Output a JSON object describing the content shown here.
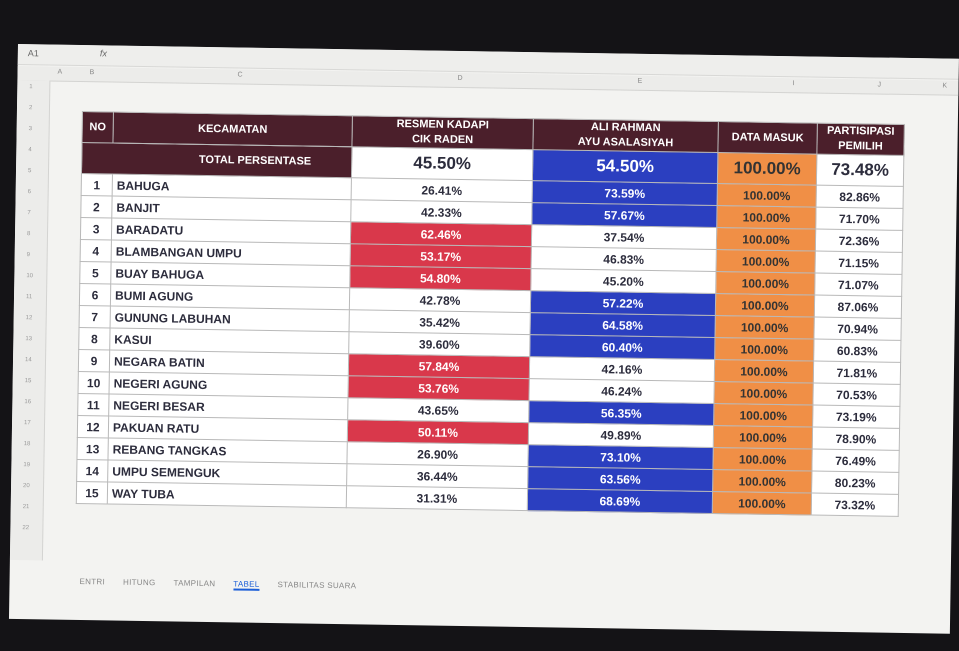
{
  "toolbar": {
    "cell_ref": "A1",
    "fx": "fx"
  },
  "columns": [
    "A",
    "B",
    "C",
    "D",
    "E",
    "",
    "I",
    "J",
    "K"
  ],
  "rows": [
    "1",
    "2",
    "3",
    "4",
    "5",
    "6",
    "7",
    "8",
    "9",
    "10",
    "11",
    "12",
    "13",
    "14",
    "15",
    "16",
    "17",
    "18",
    "19",
    "20",
    "21",
    "22"
  ],
  "header": {
    "no": "NO",
    "kecamatan": "KECAMATAN",
    "total_label": "TOTAL PERSENTASE",
    "cand1_line1": "RESMEN KADAPI",
    "cand1_line2": "CIK RADEN",
    "cand2_line1": "ALI RAHMAN",
    "cand2_line2": "AYU ASALASIYAH",
    "data_masuk": "DATA MASUK",
    "partisipasi_line1": "PARTISIPASI",
    "partisipasi_line2": "PEMILIH"
  },
  "totals": {
    "cand1": "45.50%",
    "cand2": "54.50%",
    "data_masuk": "100.00%",
    "partisipasi": "73.48%"
  },
  "table_rows": [
    {
      "no": "1",
      "name": "BAHUGA",
      "c1": "26.41%",
      "c2": "73.59%",
      "dm": "100.00%",
      "pp": "82.86%"
    },
    {
      "no": "2",
      "name": "BANJIT",
      "c1": "42.33%",
      "c2": "57.67%",
      "dm": "100.00%",
      "pp": "71.70%"
    },
    {
      "no": "3",
      "name": "BARADATU",
      "c1": "62.46%",
      "c2": "37.54%",
      "dm": "100.00%",
      "pp": "72.36%"
    },
    {
      "no": "4",
      "name": "BLAMBANGAN UMPU",
      "c1": "53.17%",
      "c2": "46.83%",
      "dm": "100.00%",
      "pp": "71.15%"
    },
    {
      "no": "5",
      "name": "BUAY BAHUGA",
      "c1": "54.80%",
      "c2": "45.20%",
      "dm": "100.00%",
      "pp": "71.07%"
    },
    {
      "no": "6",
      "name": "BUMI AGUNG",
      "c1": "42.78%",
      "c2": "57.22%",
      "dm": "100.00%",
      "pp": "87.06%"
    },
    {
      "no": "7",
      "name": "GUNUNG LABUHAN",
      "c1": "35.42%",
      "c2": "64.58%",
      "dm": "100.00%",
      "pp": "70.94%"
    },
    {
      "no": "8",
      "name": "KASUI",
      "c1": "39.60%",
      "c2": "60.40%",
      "dm": "100.00%",
      "pp": "60.83%"
    },
    {
      "no": "9",
      "name": "NEGARA BATIN",
      "c1": "57.84%",
      "c2": "42.16%",
      "dm": "100.00%",
      "pp": "71.81%"
    },
    {
      "no": "10",
      "name": "NEGERI AGUNG",
      "c1": "53.76%",
      "c2": "46.24%",
      "dm": "100.00%",
      "pp": "70.53%"
    },
    {
      "no": "11",
      "name": "NEGERI BESAR",
      "c1": "43.65%",
      "c2": "56.35%",
      "dm": "100.00%",
      "pp": "73.19%"
    },
    {
      "no": "12",
      "name": "PAKUAN RATU",
      "c1": "50.11%",
      "c2": "49.89%",
      "dm": "100.00%",
      "pp": "78.90%"
    },
    {
      "no": "13",
      "name": "REBANG TANGKAS",
      "c1": "26.90%",
      "c2": "73.10%",
      "dm": "100.00%",
      "pp": "76.49%"
    },
    {
      "no": "14",
      "name": "UMPU SEMENGUK",
      "c1": "36.44%",
      "c2": "63.56%",
      "dm": "100.00%",
      "pp": "80.23%"
    },
    {
      "no": "15",
      "name": "WAY TUBA",
      "c1": "31.31%",
      "c2": "68.69%",
      "dm": "100.00%",
      "pp": "73.32%"
    }
  ],
  "sheet_tabs": [
    "ENTRI",
    "HITUNG",
    "TAMPILAN",
    "TABEL",
    "STABILITAS SUARA"
  ],
  "active_tab": "TABEL",
  "colors": {
    "header": "#4b1f2b",
    "cand1_win": "#d9384b",
    "cand2_win": "#2b3fc0",
    "data_masuk": "#f08f46"
  }
}
